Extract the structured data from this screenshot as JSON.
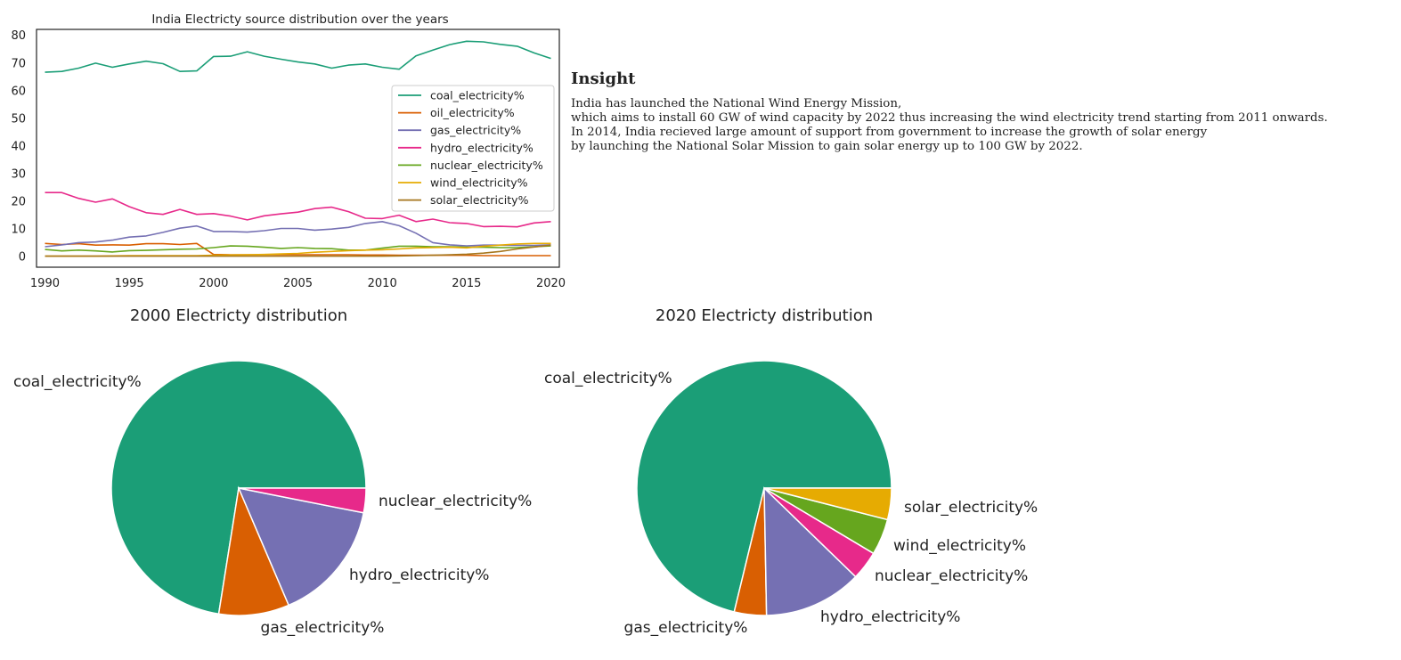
{
  "insight": {
    "title": "Insight",
    "lines": [
      "India has launched the National Wind Energy Mission,",
      "which aims to install 60 GW of wind capacity by 2022 thus increasing the wind electricity trend starting from 2011 onwards.",
      "In 2014, India recieved large amount of support from government to increase the growth of solar energy",
      "by launching the National Solar Mission to gain solar energy up to 100 GW by 2022."
    ]
  },
  "chart_data": [
    {
      "type": "line",
      "title": "India Electricty source distribution over the years",
      "xlabel": "",
      "ylabel": "",
      "xlim": [
        1989.5,
        2020.5
      ],
      "ylim": [
        -4,
        82
      ],
      "xticks": [
        1990,
        1995,
        2000,
        2005,
        2010,
        2015,
        2020
      ],
      "yticks": [
        0,
        10,
        20,
        30,
        40,
        50,
        60,
        70,
        80
      ],
      "grid": false,
      "legend": "center-right",
      "x": [
        1990,
        1991,
        1992,
        1993,
        1994,
        1995,
        1996,
        1997,
        1998,
        1999,
        2000,
        2001,
        2002,
        2003,
        2004,
        2005,
        2006,
        2007,
        2008,
        2009,
        2010,
        2011,
        2012,
        2013,
        2014,
        2015,
        2016,
        2017,
        2018,
        2019,
        2020
      ],
      "series": [
        {
          "name": "coal_electricity%",
          "color": "#1b9e77",
          "values": [
            66.5,
            66.8,
            68,
            69.8,
            68.3,
            69.5,
            70.5,
            69.6,
            66.8,
            67,
            72.2,
            72.3,
            73.9,
            72.3,
            71.2,
            70.2,
            69.5,
            68,
            69.1,
            69.5,
            68.3,
            67.6,
            72.4,
            74.5,
            76.5,
            77.7,
            77.5,
            76.6,
            75.9,
            73.5,
            71.5
          ]
        },
        {
          "name": "oil_electricity%",
          "color": "#d95f02",
          "values": [
            4.6,
            4.2,
            4.5,
            4.0,
            4.1,
            4.0,
            4.5,
            4.5,
            4.2,
            4.6,
            0.6,
            0.5,
            0.5,
            0.5,
            0.6,
            0.5,
            0.5,
            0.5,
            0.5,
            0.4,
            0.4,
            0.3,
            0.3,
            0.3,
            0.3,
            0.3,
            0.2,
            0.2,
            0.2,
            0.2,
            0.2
          ]
        },
        {
          "name": "gas_electricity%",
          "color": "#7570b3",
          "values": [
            3.4,
            4.1,
            4.9,
            5.1,
            5.8,
            6.9,
            7.3,
            8.6,
            10.1,
            10.9,
            8.9,
            8.9,
            8.7,
            9.2,
            10.0,
            10.0,
            9.4,
            9.8,
            10.4,
            11.8,
            12.5,
            11.0,
            8.3,
            4.9,
            4.1,
            3.7,
            4.0,
            4.0,
            3.9,
            3.9,
            4.1
          ]
        },
        {
          "name": "hydro_electricity%",
          "color": "#e7298a",
          "values": [
            23.0,
            23.0,
            20.9,
            19.5,
            20.7,
            17.9,
            15.7,
            15.1,
            16.9,
            15.1,
            15.4,
            14.5,
            13.1,
            14.6,
            15.3,
            15.9,
            17.2,
            17.7,
            16.1,
            13.7,
            13.6,
            14.8,
            12.5,
            13.4,
            12.1,
            11.8,
            10.7,
            10.8,
            10.6,
            12.0,
            12.5
          ]
        },
        {
          "name": "nuclear_electricity%",
          "color": "#66a61e",
          "values": [
            2.4,
            1.9,
            2.2,
            1.9,
            1.5,
            2.0,
            2.1,
            2.3,
            2.5,
            2.6,
            3.1,
            3.7,
            3.6,
            3.2,
            2.8,
            3.1,
            2.8,
            2.7,
            2.2,
            2.2,
            2.9,
            3.6,
            3.6,
            3.4,
            3.4,
            3.2,
            3.2,
            3.1,
            3.1,
            3.4,
            3.7
          ]
        },
        {
          "name": "wind_electricity%",
          "color": "#e6ab02",
          "values": [
            0,
            0,
            0,
            0,
            0.1,
            0.2,
            0.2,
            0.2,
            0.2,
            0.2,
            0.3,
            0.4,
            0.5,
            0.6,
            0.8,
            1.0,
            1.4,
            1.7,
            2.0,
            2.2,
            2.3,
            2.6,
            3.0,
            3.1,
            3.2,
            3.0,
            3.6,
            4.0,
            4.4,
            4.6,
            4.6
          ]
        },
        {
          "name": "solar_electricity%",
          "color": "#a6761d",
          "values": [
            0,
            0,
            0,
            0,
            0,
            0,
            0,
            0,
            0,
            0,
            0,
            0,
            0,
            0,
            0,
            0,
            0,
            0,
            0,
            0,
            0,
            0.1,
            0.2,
            0.3,
            0.5,
            0.7,
            1.1,
            1.7,
            2.6,
            3.3,
            4.0
          ]
        }
      ]
    },
    {
      "type": "pie",
      "title": "2000 Electricty distribution",
      "labels": [
        "coal_electricity%",
        "gas_electricity%",
        "hydro_electricity%",
        "nuclear_electricity%"
      ],
      "values": [
        72.2,
        8.9,
        15.4,
        3.1
      ],
      "colors": [
        "#1b9e77",
        "#d95f02",
        "#7570b3",
        "#e7298a"
      ]
    },
    {
      "type": "pie",
      "title": "2020 Electricty distribution",
      "labels": [
        "coal_electricity%",
        "gas_electricity%",
        "hydro_electricity%",
        "nuclear_electricity%",
        "wind_electricity%",
        "solar_electricity%"
      ],
      "values": [
        71.5,
        4.1,
        12.5,
        3.7,
        4.6,
        4.0
      ],
      "colors": [
        "#1b9e77",
        "#d95f02",
        "#7570b3",
        "#e7298a",
        "#66a61e",
        "#e6ab02"
      ]
    }
  ]
}
